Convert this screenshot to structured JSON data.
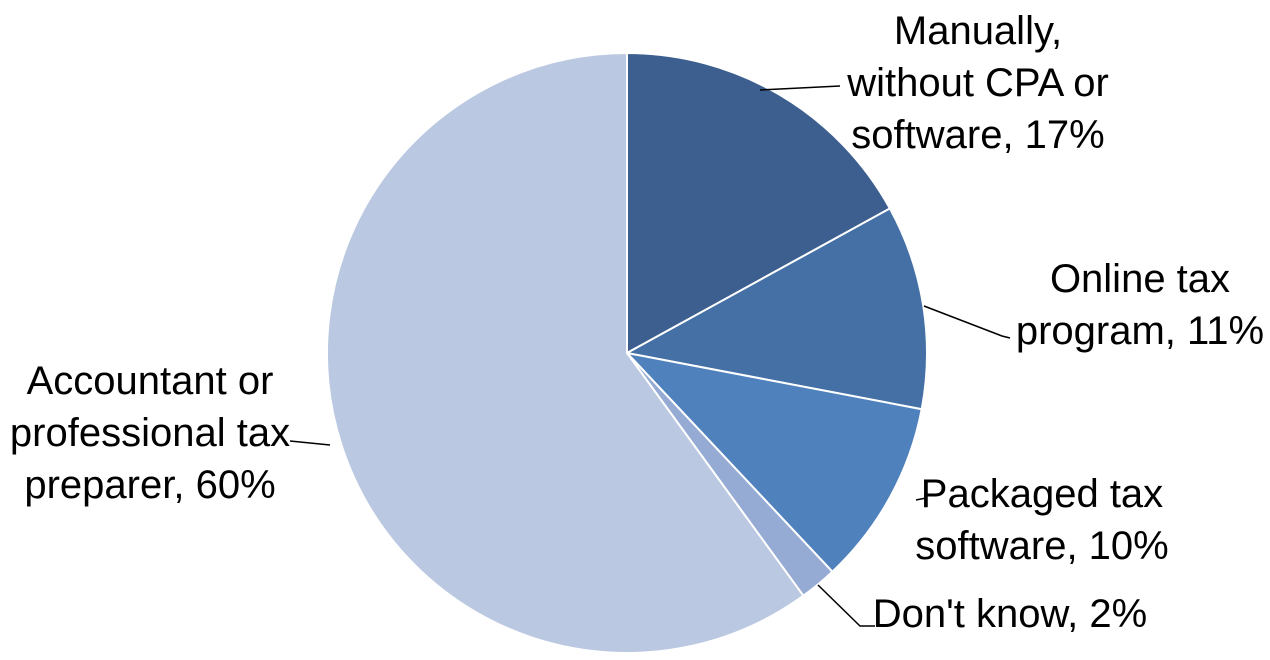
{
  "chart_data": {
    "type": "pie",
    "title": "",
    "start_angle_deg": 0,
    "direction": "clockwise",
    "slices": [
      {
        "label_lines": [
          "Manually,",
          "without CPA or",
          "software, 17%"
        ],
        "value": 17,
        "color": "#3d5f8f"
      },
      {
        "label_lines": [
          "Online tax",
          "program, 11%"
        ],
        "value": 11,
        "color": "#4470a6"
      },
      {
        "label_lines": [
          "Packaged tax",
          "software, 10%"
        ],
        "value": 10,
        "color": "#4f81bd"
      },
      {
        "label_lines": [
          "Don't know, 2%"
        ],
        "value": 2,
        "color": "#95abd4"
      },
      {
        "label_lines": [
          "Accountant or",
          "professional tax",
          "preparer, 60%"
        ],
        "value": 60,
        "color": "#bac8e1"
      }
    ]
  }
}
